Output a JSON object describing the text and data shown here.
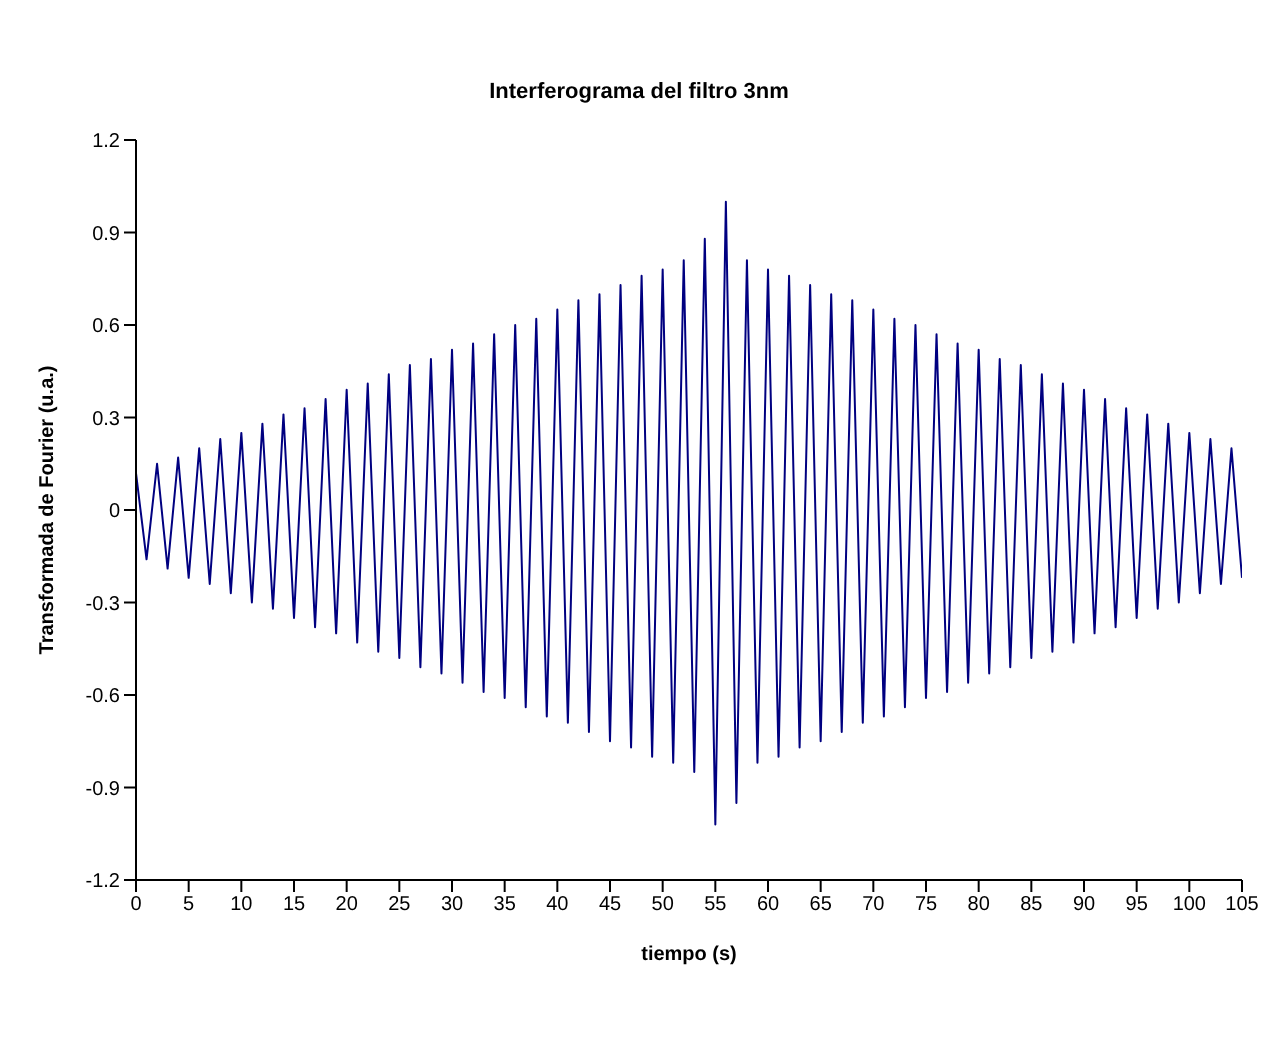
{
  "chart_data": {
    "type": "line",
    "title": "Interferograma del filtro 3nm",
    "xlabel": "tiempo (s)",
    "ylabel": "Transformada de Fourier (u.a.)",
    "x": [
      0,
      1,
      2,
      3,
      4,
      5,
      6,
      7,
      8,
      9,
      10,
      11,
      12,
      13,
      14,
      15,
      16,
      17,
      18,
      19,
      20,
      21,
      22,
      23,
      24,
      25,
      26,
      27,
      28,
      29,
      30,
      31,
      32,
      33,
      34,
      35,
      36,
      37,
      38,
      39,
      40,
      41,
      42,
      43,
      44,
      45,
      46,
      47,
      48,
      49,
      50,
      51,
      52,
      53,
      54,
      55,
      56,
      57,
      58,
      59,
      60,
      61,
      62,
      63,
      64,
      65,
      66,
      67,
      68,
      69,
      70,
      71,
      72,
      73,
      74,
      75,
      76,
      77,
      78,
      79,
      80,
      81,
      82,
      83,
      84,
      85,
      86,
      87,
      88,
      89,
      90,
      91,
      92,
      93,
      94,
      95,
      96,
      97,
      98,
      99,
      100,
      101,
      102,
      103,
      104,
      105
    ],
    "series": [
      {
        "color": "#000080",
        "values": [
          0.12,
          -0.16,
          0.15,
          -0.19,
          0.17,
          -0.22,
          0.2,
          -0.24,
          0.23,
          -0.27,
          0.25,
          -0.3,
          0.28,
          -0.32,
          0.31,
          -0.35,
          0.33,
          -0.38,
          0.36,
          -0.4,
          0.39,
          -0.43,
          0.41,
          -0.46,
          0.44,
          -0.48,
          0.47,
          -0.51,
          0.49,
          -0.53,
          0.52,
          -0.56,
          0.54,
          -0.59,
          0.57,
          -0.61,
          0.6,
          -0.64,
          0.62,
          -0.67,
          0.65,
          -0.69,
          0.68,
          -0.72,
          0.7,
          -0.75,
          0.73,
          -0.77,
          0.76,
          -0.8,
          0.78,
          -0.82,
          0.81,
          -0.85,
          0.88,
          -1.02,
          1.0,
          -0.95,
          0.81,
          -0.82,
          0.78,
          -0.8,
          0.76,
          -0.77,
          0.73,
          -0.75,
          0.7,
          -0.72,
          0.68,
          -0.69,
          0.65,
          -0.67,
          0.62,
          -0.64,
          0.6,
          -0.61,
          0.57,
          -0.59,
          0.54,
          -0.56,
          0.52,
          -0.53,
          0.49,
          -0.51,
          0.47,
          -0.48,
          0.44,
          -0.46,
          0.41,
          -0.43,
          0.39,
          -0.4,
          0.36,
          -0.38,
          0.33,
          -0.35,
          0.31,
          -0.32,
          0.28,
          -0.3,
          0.25,
          -0.27,
          0.23,
          -0.24,
          0.2,
          -0.22
        ]
      }
    ],
    "xlim": [
      0,
      105
    ],
    "xticks": [
      0,
      5,
      10,
      15,
      20,
      25,
      30,
      35,
      40,
      45,
      50,
      55,
      60,
      65,
      70,
      75,
      80,
      85,
      90,
      95,
      100,
      105
    ],
    "ylim": [
      -1.2,
      1.2
    ],
    "yticks": [
      -1.2,
      -0.9,
      -0.6,
      -0.3,
      0,
      0.3,
      0.6,
      0.9,
      1.2
    ],
    "marker": "none"
  }
}
